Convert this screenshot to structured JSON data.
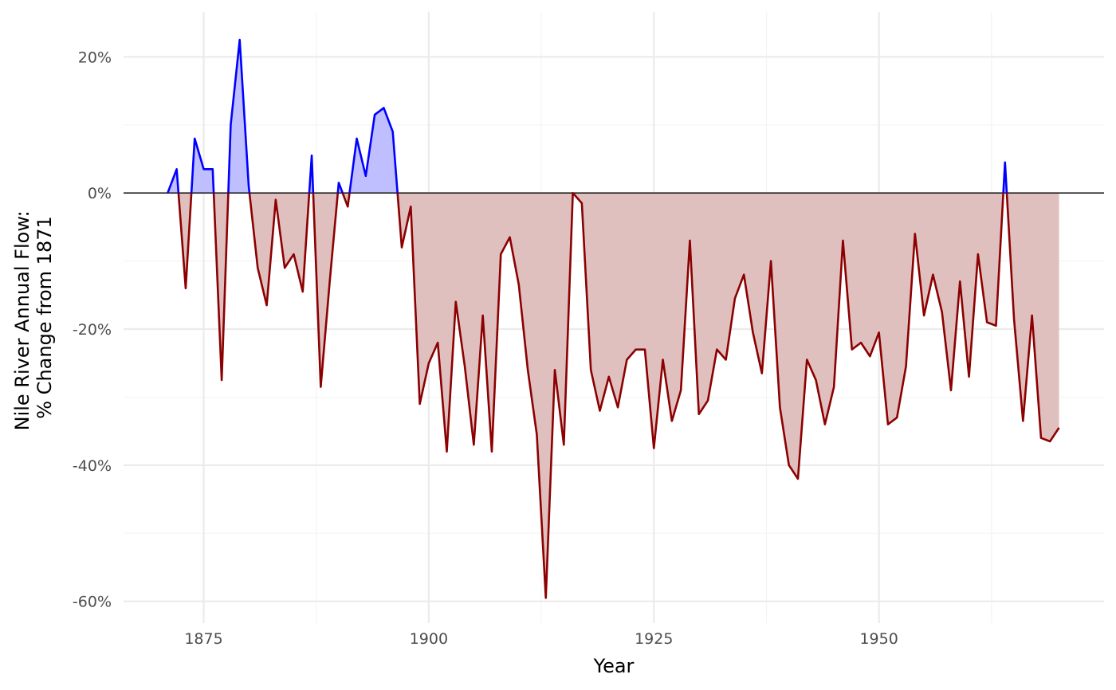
{
  "chart_data": {
    "type": "area",
    "title": "",
    "xlabel": "Year",
    "ylabel_lines": [
      "Nile River Annual Flow:",
      "% Change from 1871"
    ],
    "x_ticks": [
      1875,
      1900,
      1925,
      1950
    ],
    "x_tick_labels": [
      "1875",
      "1900",
      "1925",
      "1950"
    ],
    "y_ticks": [
      20,
      0,
      -20,
      -40,
      -60
    ],
    "y_tick_labels": [
      "20%",
      "0%",
      "-20%",
      "-40%",
      "-60%"
    ],
    "xlim": [
      1866.1,
      1975.0
    ],
    "ylim": [
      -63.2,
      26.6
    ],
    "grid": true,
    "colors": {
      "positive_line": "#0000ff",
      "positive_fill": "#bfbfff",
      "negative_line": "#8b0000",
      "negative_fill": "#e0bfbf",
      "zero_line": "#000000",
      "grid_major": "#ebebeb",
      "grid_minor": "#f4f4f4"
    },
    "x": [
      1871,
      1872,
      1873,
      1874,
      1875,
      1876,
      1877,
      1878,
      1879,
      1880,
      1881,
      1882,
      1883,
      1884,
      1885,
      1886,
      1887,
      1888,
      1889,
      1890,
      1891,
      1892,
      1893,
      1894,
      1895,
      1896,
      1897,
      1898,
      1899,
      1900,
      1901,
      1902,
      1903,
      1904,
      1905,
      1906,
      1907,
      1908,
      1909,
      1910,
      1911,
      1912,
      1913,
      1914,
      1915,
      1916,
      1917,
      1918,
      1919,
      1920,
      1921,
      1922,
      1923,
      1924,
      1925,
      1926,
      1927,
      1928,
      1929,
      1930,
      1931,
      1932,
      1933,
      1934,
      1935,
      1936,
      1937,
      1938,
      1939,
      1940,
      1941,
      1942,
      1943,
      1944,
      1945,
      1946,
      1947,
      1948,
      1949,
      1950,
      1951,
      1952,
      1953,
      1954,
      1955,
      1956,
      1957,
      1958,
      1959,
      1960,
      1961,
      1962,
      1963,
      1964,
      1965,
      1966,
      1967,
      1968,
      1969,
      1970
    ],
    "y": [
      0.0,
      3.5,
      -14.0,
      8.0,
      3.5,
      3.5,
      -27.5,
      10.0,
      22.5,
      1.0,
      -11.0,
      -16.5,
      -1.0,
      -11.0,
      -9.0,
      -14.5,
      5.5,
      -28.5,
      -13.0,
      1.5,
      -2.0,
      8.0,
      2.5,
      11.5,
      12.5,
      9.0,
      -8.0,
      -2.0,
      -31.0,
      -25.0,
      -22.0,
      -38.0,
      -16.0,
      -25.5,
      -37.0,
      -18.0,
      -38.0,
      -9.0,
      -6.5,
      -13.5,
      -26.0,
      -35.5,
      -59.5,
      -26.0,
      -37.0,
      0.0,
      -1.5,
      -26.0,
      -32.0,
      -27.0,
      -31.5,
      -24.5,
      -23.0,
      -23.0,
      -37.5,
      -24.5,
      -33.5,
      -29.0,
      -7.0,
      -32.5,
      -30.5,
      -23.0,
      -24.5,
      -15.5,
      -12.0,
      -20.5,
      -26.5,
      -10.0,
      -31.5,
      -40.0,
      -42.0,
      -24.5,
      -27.5,
      -34.0,
      -28.5,
      -7.0,
      -23.0,
      -22.0,
      -24.0,
      -20.5,
      -34.0,
      -33.0,
      -25.5,
      -6.0,
      -18.0,
      -12.0,
      -17.5,
      -29.0,
      -13.0,
      -27.0,
      -9.0,
      -19.0,
      -19.5,
      4.5,
      -18.5,
      -33.5,
      -18.0,
      -36.0,
      -36.5,
      -34.5
    ]
  }
}
